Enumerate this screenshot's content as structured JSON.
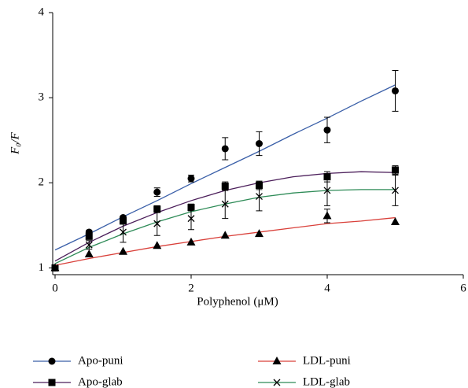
{
  "chart_data": {
    "type": "scatter",
    "x_label": "Polyphenol (μM)",
    "y_label": "F₀/F",
    "xlim": [
      0,
      6
    ],
    "xticks": [
      0,
      2,
      4,
      6
    ],
    "ylim": [
      0.92,
      4
    ],
    "yticks": [
      1,
      2,
      3,
      4
    ],
    "x": [
      0,
      0.5,
      1,
      1.5,
      2,
      2.5,
      3,
      4,
      5
    ],
    "fit_x": [
      0,
      0.5,
      1,
      1.5,
      2,
      2.5,
      3,
      3.5,
      4,
      4.5,
      5
    ],
    "series": [
      {
        "name": "Apo-puni",
        "color": "#3a5fa8",
        "marker": "circle",
        "values": [
          1.0,
          1.42,
          1.59,
          1.89,
          2.05,
          2.4,
          2.46,
          2.62,
          3.08
        ],
        "errors": [
          null,
          0.02,
          0.02,
          0.05,
          0.04,
          0.13,
          0.14,
          0.15,
          0.24
        ],
        "fit": [
          1.21,
          1.4,
          1.6,
          1.79,
          1.99,
          2.18,
          2.37,
          2.57,
          2.76,
          2.96,
          3.15
        ]
      },
      {
        "name": "Apo-glab",
        "color": "#4b1e5a",
        "marker": "square",
        "values": [
          1.0,
          1.37,
          1.55,
          1.69,
          1.71,
          1.96,
          1.97,
          2.07,
          2.15
        ],
        "errors": [
          null,
          0.02,
          0.03,
          0.04,
          0.04,
          0.05,
          0.05,
          0.06,
          0.05
        ],
        "fit": [
          1.08,
          1.3,
          1.49,
          1.65,
          1.79,
          1.91,
          2.0,
          2.07,
          2.11,
          2.13,
          2.12
        ]
      },
      {
        "name": "LDL-puni",
        "color": "#d9403a",
        "marker": "triangle",
        "values": [
          1.0,
          1.16,
          1.19,
          1.26,
          1.3,
          1.38,
          1.4,
          1.61,
          1.54
        ],
        "errors": [
          null,
          null,
          null,
          null,
          null,
          null,
          null,
          0.08,
          null
        ],
        "fit": [
          1.03,
          1.11,
          1.18,
          1.25,
          1.31,
          1.37,
          1.42,
          1.47,
          1.52,
          1.55,
          1.59
        ]
      },
      {
        "name": "LDL-glab",
        "color": "#2e8b57",
        "marker": "cross",
        "values": [
          1.0,
          1.27,
          1.42,
          1.52,
          1.58,
          1.75,
          1.84,
          1.91,
          1.91
        ],
        "errors": [
          null,
          0.05,
          0.12,
          0.14,
          0.13,
          0.17,
          0.17,
          0.18,
          0.18
        ],
        "fit": [
          1.05,
          1.24,
          1.4,
          1.54,
          1.66,
          1.75,
          1.83,
          1.88,
          1.91,
          1.92,
          1.92
        ]
      }
    ]
  }
}
